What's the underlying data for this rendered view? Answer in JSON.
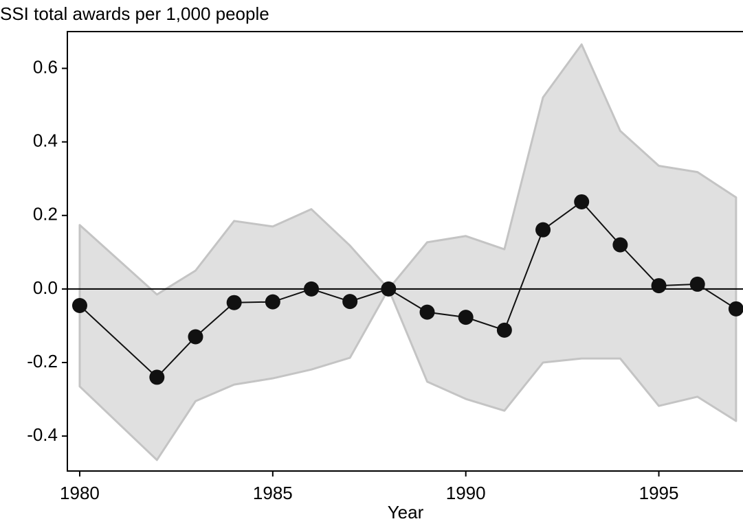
{
  "chart_data": {
    "type": "line",
    "title": "SSI total awards per 1,000 people",
    "x_label": "Year",
    "x": [
      1980,
      1982,
      1983,
      1984,
      1985,
      1986,
      1987,
      1988,
      1989,
      1990,
      1991,
      1992,
      1993,
      1994,
      1995,
      1996,
      1997
    ],
    "values": [
      -0.045,
      -0.24,
      -0.13,
      -0.037,
      -0.035,
      0.0,
      -0.034,
      0.0,
      -0.063,
      -0.077,
      -0.112,
      0.161,
      0.237,
      0.12,
      0.009,
      0.013,
      -0.054
    ],
    "ci_upper": [
      0.174,
      -0.015,
      0.05,
      0.185,
      0.17,
      0.217,
      0.118,
      0.0,
      0.127,
      0.144,
      0.108,
      0.521,
      0.665,
      0.43,
      0.335,
      0.318,
      0.249
    ],
    "ci_lower": [
      -0.265,
      -0.465,
      -0.305,
      -0.26,
      -0.243,
      -0.219,
      -0.187,
      0.0,
      -0.252,
      -0.299,
      -0.331,
      -0.2,
      -0.189,
      -0.189,
      -0.318,
      -0.293,
      -0.359
    ],
    "color": "#111111",
    "band_color": "#e0e0e0",
    "band_edge_color": "#c4c4c4",
    "reference_line": 0,
    "xlim": [
      1979.68,
      1997.18
    ],
    "xticks": [
      1980,
      1985,
      1990,
      1995
    ],
    "ylim": [
      -0.495,
      0.7
    ],
    "yticks": [
      {
        "value": -0.4,
        "label": "-0.4"
      },
      {
        "value": -0.2,
        "label": "-0.2"
      },
      {
        "value": 0,
        "label": "0.0"
      },
      {
        "value": 0.2,
        "label": "0.2"
      },
      {
        "value": 0.4,
        "label": "0.4"
      },
      {
        "value": 0.6,
        "label": "0.6"
      }
    ]
  }
}
